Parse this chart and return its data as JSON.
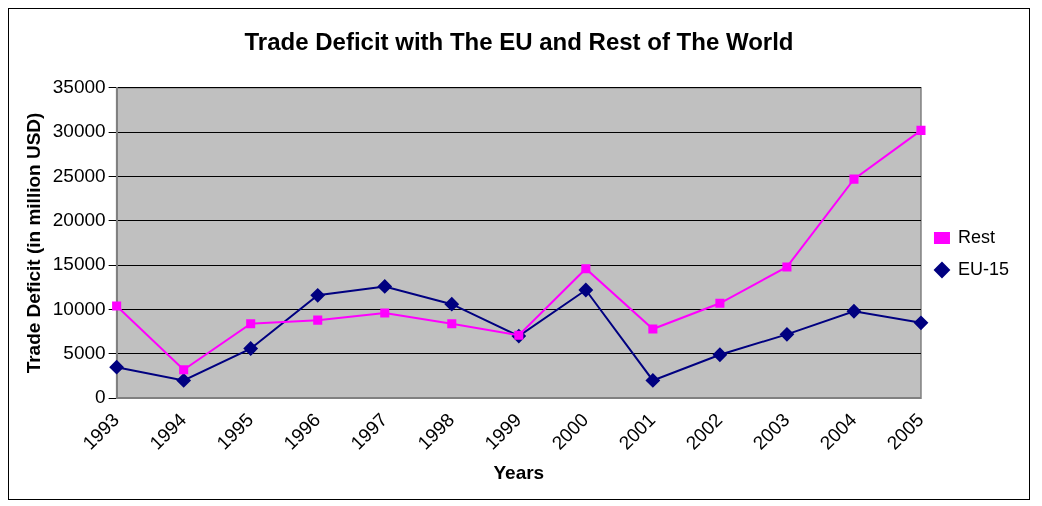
{
  "chart_data": {
    "type": "line",
    "title": "Trade Deficit with The EU and Rest of The World",
    "xlabel": "Years",
    "ylabel": "Trade Deficit (in million USD)",
    "categories": [
      "1993",
      "1994",
      "1995",
      "1996",
      "1997",
      "1998",
      "1999",
      "2000",
      "2001",
      "2002",
      "2003",
      "2004",
      "2005"
    ],
    "series": [
      {
        "name": "EU-15",
        "color": "#000080",
        "marker": "diamond",
        "values": [
          3500,
          2000,
          5600,
          11600,
          12600,
          10600,
          7000,
          12200,
          2000,
          4900,
          7200,
          9800,
          8500
        ]
      },
      {
        "name": "Rest",
        "color": "#ff00ff",
        "marker": "square",
        "values": [
          10400,
          3200,
          8400,
          8800,
          9600,
          8400,
          7100,
          14600,
          7800,
          10700,
          14800,
          24700,
          30200
        ]
      }
    ],
    "ylim": [
      0,
      35000
    ],
    "yticks": [
      0,
      5000,
      10000,
      15000,
      20000,
      25000,
      30000,
      35000
    ],
    "grid": "y",
    "legend": "right"
  }
}
